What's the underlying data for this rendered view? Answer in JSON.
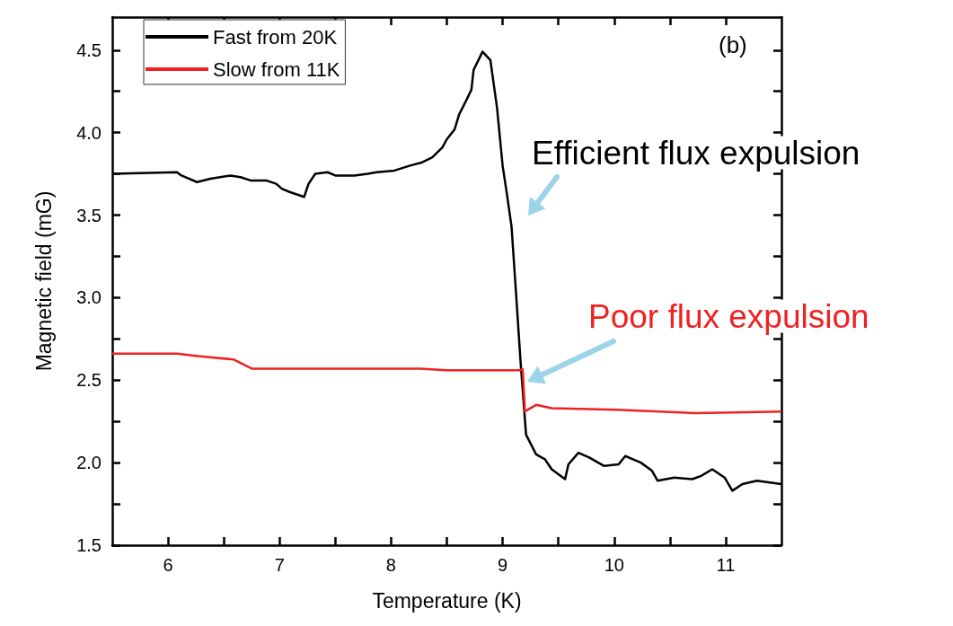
{
  "chart_data": {
    "type": "line",
    "xlabel": "Temperature (K)",
    "ylabel": "Magnetic field (mG)",
    "xlim": [
      5.5,
      11.5
    ],
    "ylim": [
      1.5,
      4.7
    ],
    "xticks": [
      6,
      {
        "value": 6.5,
        "label": null
      },
      7,
      {
        "value": 7.5,
        "label": null
      },
      8,
      {
        "value": 8.5,
        "label": null
      },
      9,
      {
        "value": 9.5,
        "label": null
      },
      10,
      {
        "value": 10.5,
        "label": null
      },
      11
    ],
    "yticks": [
      1.5,
      {
        "value": 1.75,
        "label": null
      },
      "2.0",
      {
        "value": 2.25,
        "label": null
      },
      2.5,
      {
        "value": 2.75,
        "label": null
      },
      "3.0",
      {
        "value": 3.25,
        "label": null
      },
      3.5,
      {
        "value": 3.75,
        "label": null
      },
      "4.0",
      {
        "value": 4.25,
        "label": null
      },
      4.5
    ],
    "legend": "top left",
    "grid": false,
    "marker": "none",
    "line_style": "solid",
    "annotations": [
      "(b)",
      "Efficient flux expulsion",
      "Poor flux expulsion"
    ],
    "series": [
      {
        "name": "Fast from 20K",
        "color": "#000000",
        "x": [
          5.5,
          6.08,
          6.12,
          6.26,
          6.38,
          6.56,
          6.65,
          6.74,
          6.88,
          6.97,
          7.02,
          7.09,
          7.22,
          7.26,
          7.32,
          7.43,
          7.5,
          7.67,
          7.79,
          7.87,
          8.03,
          8.17,
          8.28,
          8.37,
          8.46,
          8.5,
          8.57,
          8.61,
          8.67,
          8.72,
          8.74,
          8.82,
          8.89,
          8.95,
          9.0,
          9.04,
          9.08,
          9.12,
          9.16,
          9.21,
          9.3,
          9.38,
          9.44,
          9.56,
          9.59,
          9.68,
          9.78,
          9.91,
          10.04,
          10.1,
          10.24,
          10.34,
          10.39,
          10.54,
          10.7,
          10.78,
          10.88,
          10.99,
          11.06,
          11.15,
          11.28,
          11.5
        ],
        "values": [
          3.75,
          3.76,
          3.74,
          3.7,
          3.72,
          3.74,
          3.73,
          3.71,
          3.71,
          3.69,
          3.66,
          3.64,
          3.61,
          3.69,
          3.75,
          3.76,
          3.74,
          3.74,
          3.75,
          3.76,
          3.77,
          3.8,
          3.82,
          3.85,
          3.91,
          3.96,
          4.02,
          4.11,
          4.19,
          4.26,
          4.38,
          4.49,
          4.44,
          4.15,
          3.8,
          3.62,
          3.43,
          3.03,
          2.62,
          2.17,
          2.05,
          2.02,
          1.96,
          1.9,
          1.99,
          2.06,
          2.03,
          1.98,
          1.99,
          2.04,
          2.0,
          1.95,
          1.89,
          1.91,
          1.9,
          1.92,
          1.96,
          1.91,
          1.83,
          1.87,
          1.89,
          1.87
        ]
      },
      {
        "name": "Slow from 11K",
        "color": "#ee2222",
        "x": [
          5.5,
          6.08,
          6.27,
          6.59,
          6.75,
          7.56,
          8.26,
          8.5,
          9.15,
          9.18,
          9.2,
          9.3,
          9.44,
          10.03,
          10.73,
          11.5
        ],
        "values": [
          2.66,
          2.66,
          2.645,
          2.625,
          2.57,
          2.57,
          2.57,
          2.56,
          2.56,
          2.565,
          2.31,
          2.35,
          2.33,
          2.32,
          2.3,
          2.31
        ]
      }
    ]
  }
}
